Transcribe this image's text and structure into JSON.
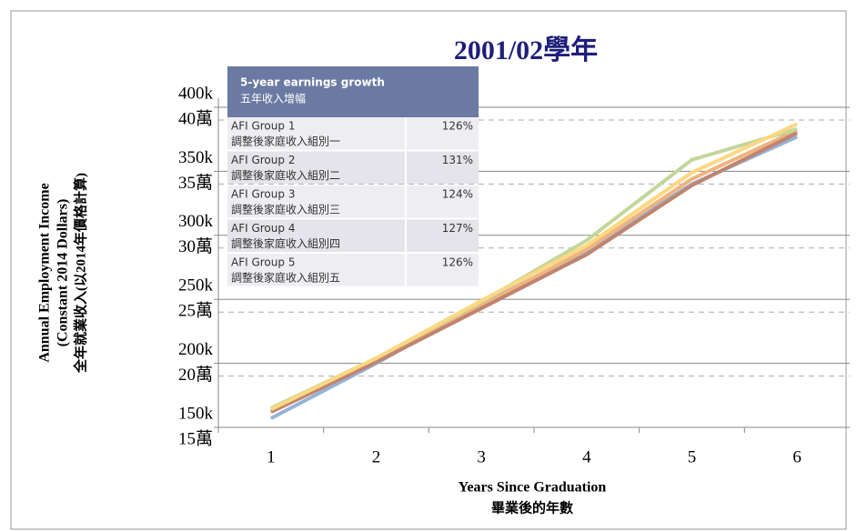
{
  "chart_data": {
    "type": "line",
    "title": "2001/02學年",
    "x_label": [
      "Years Since Graduation",
      "畢業後的年數"
    ],
    "y_label": [
      "Annual Employment Income",
      "(Constant 2014 Dollars)",
      "全年就業收入(以2014年價格計算)"
    ],
    "x": [
      1,
      2,
      3,
      4,
      5,
      6
    ],
    "xlim": [
      0.5,
      6.5
    ],
    "xticks": [
      1,
      2,
      3,
      4,
      5,
      6
    ],
    "ylim": [
      150000,
      400000
    ],
    "yticks": [
      {
        "value": 150000,
        "label": "150k"
      },
      {
        "value": 200000,
        "label": "200k"
      },
      {
        "value": 250000,
        "label": "250k"
      },
      {
        "value": 300000,
        "label": "300k"
      },
      {
        "value": 350000,
        "label": "350k"
      },
      {
        "value": 400000,
        "label": "400k"
      }
    ],
    "ytick_labels_cn": [
      "15萬",
      "20萬",
      "25萬",
      "30萬",
      "35萬",
      "40萬"
    ],
    "grid": true,
    "series": [
      {
        "name": "AFI Group 1",
        "color": "#95b3d7",
        "values": [
          157000,
          200000,
          246000,
          288000,
          340000,
          377000
        ]
      },
      {
        "name": "AFI Group 2",
        "color": "#f0b37e",
        "values": [
          163000,
          203000,
          245000,
          289000,
          344000,
          382000
        ]
      },
      {
        "name": "AFI Group 3",
        "color": "#c0846f",
        "values": [
          162000,
          201000,
          243000,
          285000,
          339000,
          380000
        ]
      },
      {
        "name": "AFI Group 4",
        "color": "#c3d69b",
        "values": [
          165000,
          204000,
          248000,
          296000,
          359000,
          383000
        ]
      },
      {
        "name": "AFI Group 5",
        "color": "#fcd882",
        "values": [
          164000,
          204000,
          249000,
          292000,
          349000,
          387000
        ]
      }
    ],
    "table": {
      "header": [
        "5-year earnings growth",
        "五年收入增幅"
      ],
      "rows": [
        [
          "AFI Group 1",
          "調整後家庭收入組別一",
          "126%"
        ],
        [
          "AFI Group 2",
          "調整後家庭收入組別二",
          "131%"
        ],
        [
          "AFI Group 3",
          "調整後家庭收入組別三",
          "124%"
        ],
        [
          "AFI Group 4",
          "調整後家庭收入組別四",
          "127%"
        ],
        [
          "AFI Group 5",
          "調整後家庭收入組別五",
          "126%"
        ]
      ]
    }
  }
}
